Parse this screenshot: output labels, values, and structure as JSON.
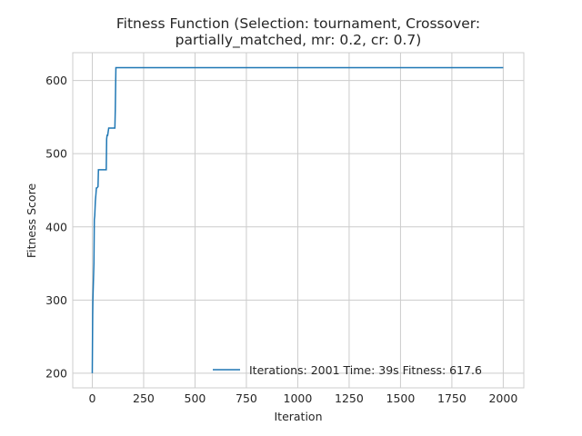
{
  "chart_data": {
    "type": "line",
    "title_line1": "Fitness Function (Selection: tournament, Crossover:",
    "title_line2": "partially_matched, mr: 0.2, cr: 0.7)",
    "xlabel": "Iteration",
    "ylabel": "Fitness Score",
    "xlim": [
      -95,
      2100
    ],
    "ylim": [
      180,
      638
    ],
    "xticks": [
      0,
      250,
      500,
      750,
      1000,
      1250,
      1500,
      1750,
      2000
    ],
    "yticks": [
      200,
      300,
      400,
      500,
      600
    ],
    "grid": true,
    "legend_position": "lower-right",
    "line_color": "#1f77b4",
    "series": [
      {
        "name": "Iterations: 2001 Time: 39s Fitness: 617.6",
        "x": [
          0,
          1,
          2,
          3,
          4,
          6,
          8,
          10,
          12,
          15,
          18,
          20,
          22,
          28,
          30,
          35,
          40,
          45,
          50,
          55,
          60,
          68,
          70,
          72,
          75,
          80,
          85,
          90,
          95,
          100,
          105,
          110,
          112,
          115,
          118,
          120,
          2000
        ],
        "y": [
          200,
          240,
          280,
          300,
          310,
          330,
          350,
          410,
          415,
          435,
          445,
          453,
          453,
          455,
          478,
          478,
          478,
          478,
          478,
          478,
          478,
          478,
          520,
          525,
          525,
          535,
          535,
          535,
          535,
          535,
          535,
          535,
          560,
          617.6,
          617.6,
          617.6,
          617.6
        ]
      }
    ]
  }
}
